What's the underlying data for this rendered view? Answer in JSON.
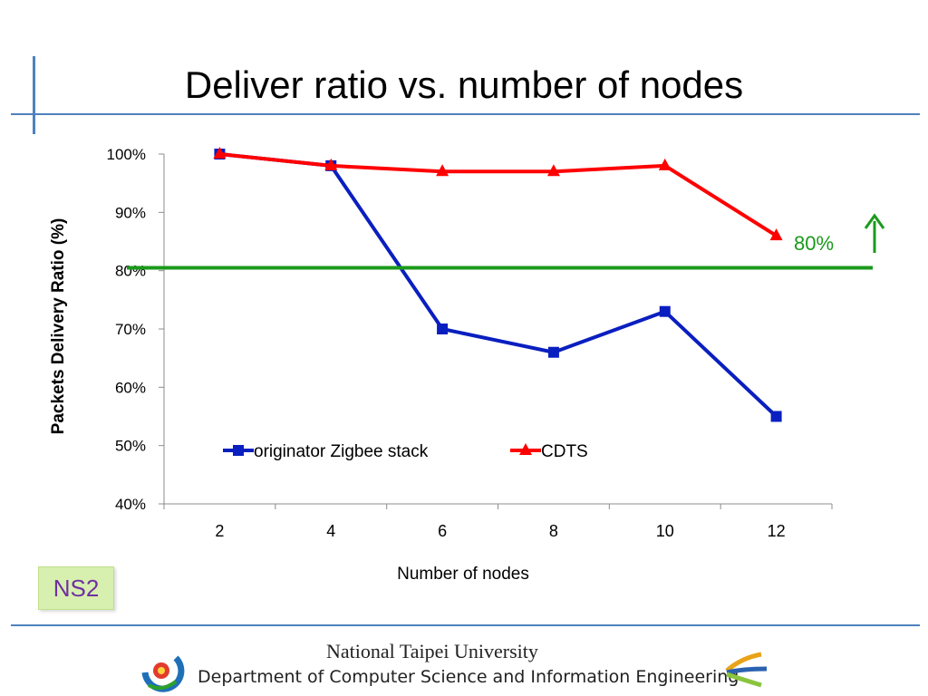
{
  "slide": {
    "title": "Deliver ratio vs. number of nodes",
    "badge": "NS2",
    "footer_university": "National Taipei University",
    "footer_department": "Department of Computer Science and Information Engineering"
  },
  "colors": {
    "accent_lines": "#4f81bd",
    "series_zigbee": "#0a1fbf",
    "series_cdts": "#ff0000",
    "threshold": "#1a9a1a",
    "badge_text": "#7030a0",
    "badge_bg": "#d7f0b0"
  },
  "chart_data": {
    "type": "line",
    "title": "",
    "xlabel": "Number of nodes",
    "ylabel": "Packets Delivery Ratio (%)",
    "categories": [
      "2",
      "4",
      "6",
      "8",
      "10",
      "12"
    ],
    "y_ticks": [
      "40%",
      "50%",
      "60%",
      "70%",
      "80%",
      "90%",
      "100%"
    ],
    "ylim": [
      40,
      100
    ],
    "grid": false,
    "legend_position": "inside-bottom",
    "series": [
      {
        "name": "originator Zigbee stack",
        "marker": "square",
        "color": "#0a1fbf",
        "values": [
          100,
          98,
          70,
          66,
          73,
          55
        ]
      },
      {
        "name": "CDTS",
        "marker": "triangle",
        "color": "#ff0000",
        "values": [
          100,
          98,
          97,
          97,
          98,
          86
        ]
      }
    ],
    "threshold": {
      "value": 80.5,
      "label": "80%",
      "color": "#1a9a1a",
      "icon": "up-arrow-icon"
    }
  }
}
